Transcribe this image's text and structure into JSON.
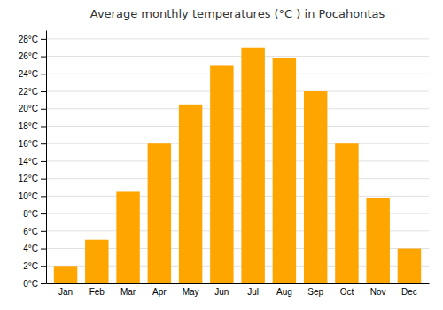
{
  "chart_data": {
    "type": "bar",
    "title": "Average monthly temperatures (°C ) in Pocahontas",
    "categories": [
      "Jan",
      "Feb",
      "Mar",
      "Apr",
      "May",
      "Jun",
      "Jul",
      "Aug",
      "Sep",
      "Oct",
      "Nov",
      "Dec"
    ],
    "values": [
      2,
      5,
      10.5,
      16,
      20.5,
      25,
      27,
      25.8,
      22,
      16,
      9.8,
      4
    ],
    "color": "#FFA500",
    "ylim": [
      0,
      29
    ],
    "yticks": [
      {
        "value": 0,
        "label": "0°C"
      },
      {
        "value": 2,
        "label": "2°C"
      },
      {
        "value": 4,
        "label": "4°C"
      },
      {
        "value": 6,
        "label": "6°C"
      },
      {
        "value": 8,
        "label": "8°C"
      },
      {
        "value": 10,
        "label": "10°C"
      },
      {
        "value": 12,
        "label": "12°C"
      },
      {
        "value": 14,
        "label": "14°C"
      },
      {
        "value": 16,
        "label": "16°C"
      },
      {
        "value": 18,
        "label": "18°C"
      },
      {
        "value": 20,
        "label": "20°C"
      },
      {
        "value": 22,
        "label": "22°C"
      },
      {
        "value": 24,
        "label": "24°C"
      },
      {
        "value": 26,
        "label": "26°C"
      },
      {
        "value": 28,
        "label": "28°C"
      }
    ],
    "grid": true
  }
}
